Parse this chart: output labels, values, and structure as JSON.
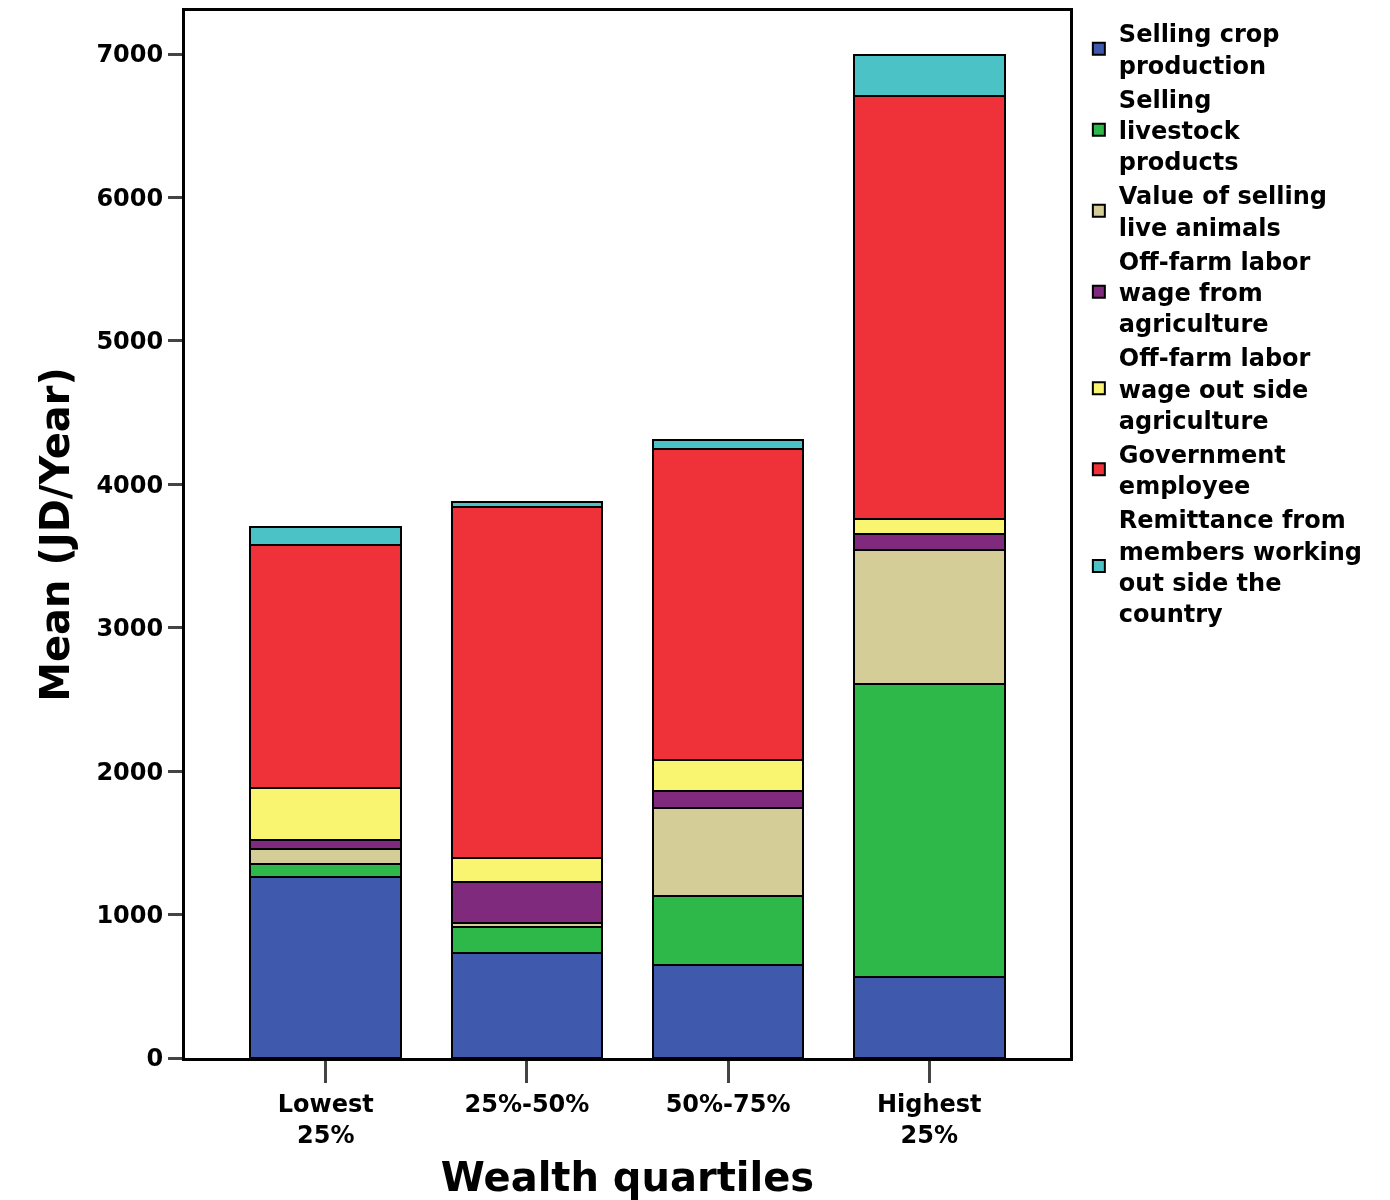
{
  "chart_data": {
    "type": "bar",
    "stacked": true,
    "xlabel": "Wealth quartiles",
    "ylabel": "Mean (JD/Year)",
    "categories": [
      "Lowest 25%",
      "25%-50%",
      "50%-75%",
      "Highest 25%"
    ],
    "ylim": [
      0,
      7300
    ],
    "yticks": [
      0,
      1000,
      2000,
      3000,
      4000,
      5000,
      6000,
      7000
    ],
    "legend": "right",
    "series": [
      {
        "name": "Selling crop production",
        "color": "#3f59ad",
        "values": [
          1260,
          730,
          645,
          565
        ]
      },
      {
        "name": "Selling livestock products",
        "color": "#2fb84a",
        "values": [
          95,
          180,
          485,
          2040
        ]
      },
      {
        "name": "Value of selling live animals",
        "color": "#d4cd98",
        "values": [
          100,
          30,
          610,
          940
        ]
      },
      {
        "name": "Off-farm labor wage from agriculture",
        "color": "#7f2a7c",
        "values": [
          65,
          285,
          120,
          110
        ]
      },
      {
        "name": "Off-farm labor wage out side agriculture",
        "color": "#f9f570",
        "values": [
          365,
          170,
          215,
          105
        ]
      },
      {
        "name": "Government employee",
        "color": "#ef323a",
        "values": [
          1695,
          2450,
          2170,
          2950
        ]
      },
      {
        "name": "Remittance from members working out side the country",
        "color": "#4bc2c5",
        "values": [
          120,
          30,
          65,
          280
        ]
      }
    ]
  }
}
